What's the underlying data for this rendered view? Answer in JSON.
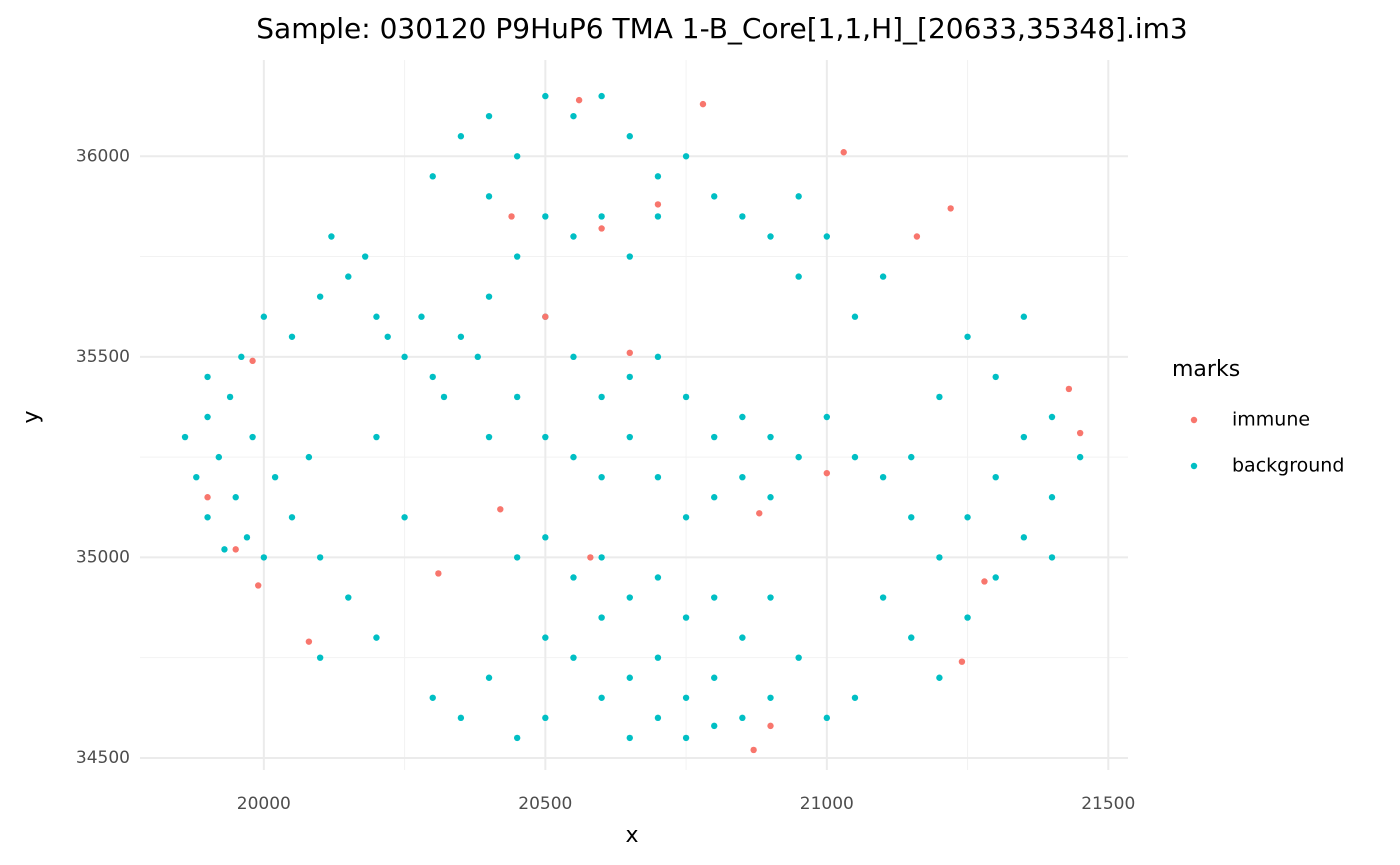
{
  "chart_data": {
    "type": "scatter",
    "title": "Sample: 030120 P9HuP6 TMA 1-B_Core[1,1,H]_[20633,35348].im3",
    "x_label": "x",
    "y_label": "y",
    "legend_title": "marks",
    "legend": "right",
    "grid": true,
    "xlim": [
      19780,
      21535
    ],
    "ylim": [
      34470,
      36240
    ],
    "xticks": [
      20000,
      20500,
      21000,
      21500
    ],
    "yticks": [
      34500,
      35000,
      35500,
      36000
    ],
    "x_minor_grid": [
      20250,
      20750,
      21250
    ],
    "y_minor_grid": [
      34750,
      35250,
      35750
    ],
    "series": [
      {
        "name": "immune",
        "color": "#F8766D",
        "x": [
          19980,
          19900,
          19950,
          19990,
          20080,
          20310,
          20420,
          20500,
          20560,
          20600,
          20780,
          21030,
          21220,
          21160,
          20650,
          20870,
          20900,
          21280,
          21240,
          21430,
          21450,
          20440,
          20700,
          21000,
          20880,
          20580
        ],
        "values": [
          35490,
          35150,
          35020,
          34930,
          34790,
          34960,
          35120,
          35600,
          36140,
          35820,
          36130,
          36010,
          35870,
          35800,
          35510,
          34520,
          34580,
          34940,
          34740,
          35420,
          35310,
          35850,
          35880,
          35210,
          35110,
          35000
        ]
      },
      {
        "name": "background",
        "color": "#00BFC4",
        "x": [
          19860,
          19880,
          19900,
          19920,
          19950,
          19900,
          19970,
          20000,
          19940,
          19960,
          19900,
          20020,
          20050,
          19980,
          19930,
          20080,
          20000,
          20050,
          20100,
          20150,
          20200,
          20250,
          20300,
          20350,
          20280,
          20320,
          20380,
          20400,
          20220,
          20180,
          20120,
          20300,
          20350,
          20400,
          20450,
          20500,
          20550,
          20600,
          20650,
          20700,
          20750,
          20800,
          20850,
          20900,
          20950,
          20500,
          20550,
          20600,
          20400,
          20450,
          20700,
          20650,
          20500,
          20550,
          20600,
          20650,
          20700,
          20750,
          20800,
          20850,
          20900,
          20950,
          21000,
          21050,
          20450,
          20400,
          20500,
          20550,
          20600,
          20650,
          20700,
          20750,
          20800,
          20850,
          20900,
          20450,
          20500,
          20550,
          20600,
          20650,
          20700,
          20750,
          20800,
          20850,
          20500,
          20550,
          20600,
          20650,
          20700,
          20750,
          20800,
          20850,
          20900,
          20400,
          20350,
          20300,
          20450,
          20500,
          20650,
          20700,
          20750,
          20800,
          20900,
          20950,
          20600,
          21100,
          21150,
          21200,
          21250,
          21300,
          21350,
          21400,
          21450,
          21400,
          21350,
          21300,
          21250,
          21200,
          21150,
          21100,
          21300,
          21350,
          21250,
          21200,
          21400,
          21050,
          21000,
          21150,
          20100,
          20150,
          20200,
          20100,
          20250,
          20200,
          21050,
          21100,
          21000,
          20950
        ],
        "values": [
          35300,
          35200,
          35350,
          35250,
          35150,
          35100,
          35050,
          35000,
          35400,
          35500,
          35450,
          35200,
          35100,
          35300,
          35020,
          35250,
          35600,
          35550,
          35650,
          35700,
          35600,
          35500,
          35450,
          35550,
          35600,
          35400,
          35500,
          35650,
          35550,
          35750,
          35800,
          35950,
          36050,
          36100,
          36000,
          36150,
          36100,
          36150,
          36050,
          35950,
          36000,
          35900,
          35850,
          35800,
          35900,
          35850,
          35800,
          35850,
          35900,
          35750,
          35850,
          35750,
          35600,
          35500,
          35400,
          35450,
          35500,
          35400,
          35300,
          35350,
          35300,
          35250,
          35350,
          35250,
          35400,
          35300,
          35300,
          35250,
          35200,
          35300,
          35200,
          35100,
          35150,
          35200,
          35150,
          35000,
          35050,
          34950,
          35000,
          34900,
          34950,
          34850,
          34900,
          34800,
          34800,
          34750,
          34850,
          34700,
          34750,
          34650,
          34700,
          34600,
          34650,
          34700,
          34600,
          34650,
          34550,
          34600,
          34550,
          34600,
          34550,
          34580,
          34900,
          34750,
          34650,
          34900,
          34800,
          34700,
          34850,
          34950,
          35050,
          35150,
          35250,
          35350,
          35300,
          35200,
          35100,
          35000,
          35100,
          35200,
          35450,
          35600,
          35550,
          35400,
          35000,
          34650,
          34600,
          35250,
          35000,
          34900,
          34800,
          34750,
          35100,
          35300,
          35600,
          35700,
          35800,
          35700
        ]
      }
    ]
  }
}
